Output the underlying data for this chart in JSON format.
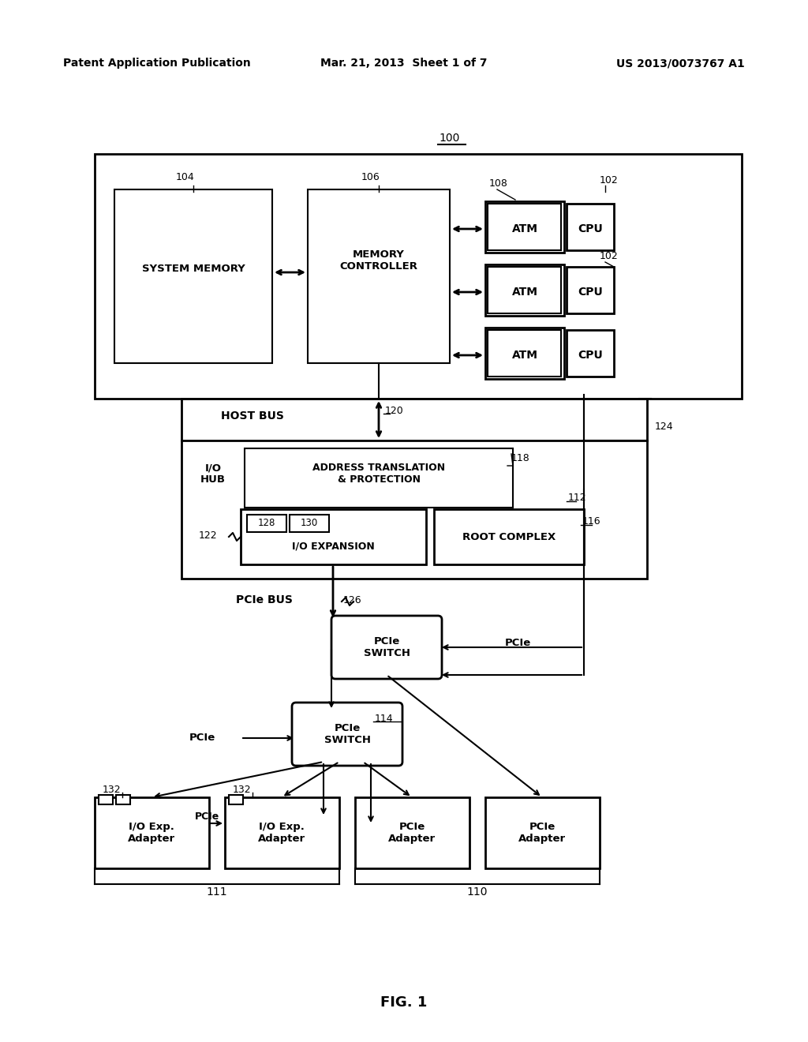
{
  "bg_color": "#ffffff",
  "header_left": "Patent Application Publication",
  "header_mid": "Mar. 21, 2013  Sheet 1 of 7",
  "header_right": "US 2013/0073767 A1",
  "fig_label": "FIG. 1"
}
